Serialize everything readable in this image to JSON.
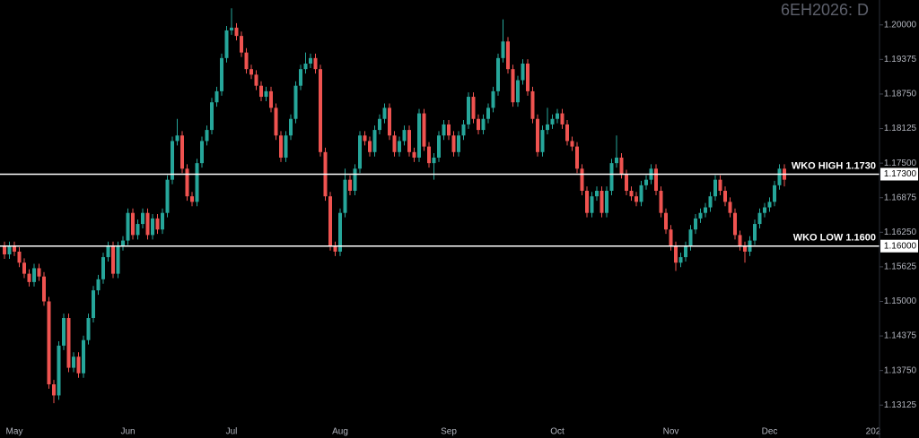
{
  "chart_data": {
    "type": "candlestick",
    "title": "6EH2026: D",
    "categories": [
      null,
      null,
      "May",
      null,
      null,
      null,
      null,
      null,
      null,
      null,
      null,
      null,
      null,
      null,
      null,
      null,
      null,
      null,
      null,
      null,
      null,
      null,
      null,
      null,
      null,
      "Jun",
      null,
      null,
      null,
      null,
      null,
      null,
      null,
      null,
      null,
      null,
      null,
      null,
      null,
      null,
      null,
      null,
      null,
      null,
      null,
      null,
      "Jul",
      null,
      null,
      null,
      null,
      null,
      null,
      null,
      null,
      null,
      null,
      null,
      null,
      null,
      null,
      null,
      null,
      null,
      null,
      null,
      null,
      null,
      "Aug",
      null,
      null,
      null,
      null,
      null,
      null,
      null,
      null,
      null,
      null,
      null,
      null,
      null,
      null,
      null,
      null,
      null,
      null,
      null,
      null,
      null,
      "Sep",
      null,
      null,
      null,
      null,
      null,
      null,
      null,
      null,
      null,
      null,
      null,
      null,
      null,
      null,
      null,
      null,
      null,
      null,
      null,
      null,
      null,
      "Oct",
      null,
      null,
      null,
      null,
      null,
      null,
      null,
      null,
      null,
      null,
      null,
      null,
      null,
      null,
      null,
      null,
      null,
      null,
      null,
      null,
      null,
      null,
      "Nov",
      null,
      null,
      null,
      null,
      null,
      null,
      null,
      null,
      null,
      null,
      null,
      null,
      null,
      null,
      null,
      null,
      null,
      null,
      null,
      "Dec",
      null,
      null,
      null,
      null,
      null,
      null,
      null,
      null,
      null,
      null,
      null,
      null,
      null,
      null,
      null,
      null,
      null,
      null,
      null,
      null,
      "202"
    ],
    "open": [
      1.16,
      1.1585,
      1.16,
      1.159,
      1.157,
      1.155,
      1.1535,
      1.156,
      1.1545,
      1.15,
      1.135,
      1.133,
      1.142,
      1.147,
      1.138,
      1.14,
      1.137,
      1.143,
      1.147,
      1.152,
      1.154,
      1.158,
      1.16,
      1.155,
      1.16,
      1.161,
      1.166,
      1.162,
      1.164,
      1.166,
      1.162,
      1.165,
      1.163,
      1.166,
      1.172,
      1.179,
      1.18,
      1.174,
      1.169,
      1.168,
      1.175,
      1.179,
      1.181,
      1.186,
      1.188,
      1.194,
      1.199,
      1.1995,
      1.198,
      1.195,
      1.192,
      1.191,
      1.189,
      1.187,
      1.188,
      1.185,
      1.18,
      1.176,
      1.18,
      1.183,
      1.189,
      1.192,
      1.193,
      1.194,
      1.192,
      1.177,
      1.169,
      1.16,
      1.159,
      1.166,
      1.172,
      1.17,
      1.174,
      1.18,
      1.179,
      1.177,
      1.181,
      1.183,
      1.185,
      1.18,
      1.177,
      1.179,
      1.181,
      1.177,
      1.176,
      1.184,
      1.178,
      1.175,
      1.176,
      1.18,
      1.182,
      1.18,
      1.177,
      1.18,
      1.182,
      1.187,
      1.183,
      1.181,
      1.183,
      1.185,
      1.188,
      1.194,
      1.197,
      1.192,
      1.186,
      1.19,
      1.193,
      1.188,
      1.183,
      1.177,
      1.181,
      1.182,
      1.183,
      1.184,
      1.182,
      1.179,
      1.178,
      1.174,
      1.17,
      1.166,
      1.169,
      1.17,
      1.166,
      1.17,
      1.175,
      1.176,
      1.173,
      1.17,
      1.169,
      1.168,
      1.171,
      1.172,
      1.174,
      1.17,
      1.166,
      1.163,
      1.16,
      1.157,
      1.158,
      1.16,
      1.163,
      1.165,
      1.166,
      1.167,
      1.169,
      1.172,
      1.17,
      1.168,
      1.166,
      1.162,
      1.16,
      1.159,
      1.161,
      1.164,
      1.166,
      1.167,
      1.168,
      1.171,
      1.174,
      null,
      null,
      null,
      null,
      null,
      null,
      null,
      null,
      null,
      null,
      null,
      null,
      null,
      null,
      null,
      null,
      null,
      null
    ],
    "high": [
      1.1608,
      1.1608,
      1.1608,
      1.1598,
      1.1578,
      1.1558,
      1.1568,
      1.1568,
      1.1553,
      1.1508,
      1.1358,
      1.1428,
      1.1478,
      1.1478,
      1.1408,
      1.1408,
      1.1438,
      1.1478,
      1.1528,
      1.1548,
      1.1588,
      1.1608,
      1.1608,
      1.1608,
      1.1618,
      1.1668,
      1.1668,
      1.1648,
      1.1668,
      1.1668,
      1.1658,
      1.1658,
      1.1668,
      1.1728,
      1.1798,
      1.183,
      1.1808,
      1.1748,
      1.1698,
      1.1758,
      1.1798,
      1.1818,
      1.1868,
      1.1888,
      1.1948,
      1.1998,
      1.203,
      1.2003,
      1.1988,
      1.1958,
      1.1928,
      1.1918,
      1.1898,
      1.1888,
      1.1888,
      1.1858,
      1.1808,
      1.1808,
      1.1838,
      1.1898,
      1.1928,
      1.195,
      1.1948,
      1.1948,
      1.1928,
      1.1778,
      1.1698,
      1.1608,
      1.1668,
      1.174,
      1.1728,
      1.1748,
      1.1808,
      1.1808,
      1.1798,
      1.1818,
      1.1838,
      1.1858,
      1.1858,
      1.1808,
      1.1798,
      1.1818,
      1.1818,
      1.1778,
      1.1848,
      1.1848,
      1.1788,
      1.1768,
      1.1808,
      1.1828,
      1.1828,
      1.1808,
      1.1808,
      1.1828,
      1.1878,
      1.1878,
      1.1838,
      1.1838,
      1.1858,
      1.1888,
      1.1948,
      1.201,
      1.1978,
      1.1928,
      1.1908,
      1.1938,
      1.1938,
      1.1888,
      1.1838,
      1.1818,
      1.185,
      1.1838,
      1.1848,
      1.1848,
      1.1828,
      1.1798,
      1.1788,
      1.1748,
      1.1708,
      1.1698,
      1.1708,
      1.1708,
      1.1708,
      1.1758,
      1.18,
      1.1768,
      1.1738,
      1.1708,
      1.1698,
      1.1718,
      1.1728,
      1.1748,
      1.1748,
      1.1708,
      1.1668,
      1.1638,
      1.1608,
      1.1588,
      1.1608,
      1.1638,
      1.1658,
      1.1668,
      1.1678,
      1.1698,
      1.1728,
      1.1728,
      1.1708,
      1.1688,
      1.1668,
      1.1628,
      1.1608,
      1.1618,
      1.1648,
      1.1668,
      1.1678,
      1.1688,
      1.1718,
      1.1748,
      1.1748,
      null,
      null,
      null,
      null,
      null,
      null,
      null,
      null,
      null,
      null,
      null,
      null,
      null,
      null,
      null,
      null,
      null,
      null
    ],
    "low": [
      1.1577,
      1.1577,
      1.1582,
      1.1562,
      1.1542,
      1.1527,
      1.1527,
      1.1537,
      1.1492,
      1.1342,
      1.1316,
      1.1322,
      1.1412,
      1.1372,
      1.1372,
      1.1362,
      1.1362,
      1.1422,
      1.1462,
      1.1512,
      1.1532,
      1.1572,
      1.1542,
      1.1542,
      1.1592,
      1.1602,
      1.1612,
      1.1612,
      1.1632,
      1.1612,
      1.1612,
      1.1622,
      1.1622,
      1.1652,
      1.1712,
      1.1782,
      1.1732,
      1.1682,
      1.1672,
      1.1672,
      1.1742,
      1.1782,
      1.1802,
      1.1852,
      1.1872,
      1.1932,
      1.1982,
      1.1972,
      1.1942,
      1.1912,
      1.1902,
      1.1882,
      1.1862,
      1.1862,
      1.1842,
      1.1792,
      1.1752,
      1.1752,
      1.1792,
      1.1822,
      1.1882,
      1.1912,
      1.1922,
      1.1912,
      1.1762,
      1.1682,
      1.1592,
      1.1582,
      1.1582,
      1.1652,
      1.1692,
      1.1692,
      1.1732,
      1.1782,
      1.1762,
      1.1762,
      1.1802,
      1.1822,
      1.1792,
      1.1762,
      1.1762,
      1.1782,
      1.1762,
      1.1752,
      1.1752,
      1.1772,
      1.1742,
      1.172,
      1.1752,
      1.1792,
      1.1792,
      1.1762,
      1.1762,
      1.1792,
      1.1812,
      1.1822,
      1.1802,
      1.1802,
      1.1822,
      1.1842,
      1.1872,
      1.1932,
      1.1912,
      1.1852,
      1.1852,
      1.1892,
      1.1872,
      1.1822,
      1.1762,
      1.1762,
      1.1802,
      1.1812,
      1.1822,
      1.1812,
      1.1782,
      1.1772,
      1.1732,
      1.1692,
      1.1652,
      1.1652,
      1.1682,
      1.1652,
      1.1652,
      1.1692,
      1.1742,
      1.1722,
      1.1692,
      1.1682,
      1.1672,
      1.1672,
      1.1702,
      1.1712,
      1.1692,
      1.1652,
      1.1622,
      1.1592,
      1.1555,
      1.1562,
      1.1572,
      1.1592,
      1.1622,
      1.1642,
      1.1652,
      1.1662,
      1.1682,
      1.1692,
      1.1672,
      1.1652,
      1.1612,
      1.1592,
      1.157,
      1.1582,
      1.1602,
      1.1632,
      1.1652,
      1.1662,
      1.1672,
      1.1702,
      1.1708,
      null,
      null,
      null,
      null,
      null,
      null,
      null,
      null,
      null,
      null,
      null,
      null,
      null,
      null,
      null,
      null,
      null,
      null
    ],
    "close": [
      1.1585,
      1.16,
      1.159,
      1.157,
      1.155,
      1.1535,
      1.156,
      1.1545,
      1.15,
      1.135,
      1.133,
      1.142,
      1.147,
      1.138,
      1.14,
      1.137,
      1.143,
      1.147,
      1.152,
      1.154,
      1.158,
      1.16,
      1.155,
      1.16,
      1.161,
      1.166,
      1.162,
      1.164,
      1.166,
      1.162,
      1.165,
      1.163,
      1.166,
      1.172,
      1.179,
      1.18,
      1.174,
      1.169,
      1.168,
      1.175,
      1.179,
      1.181,
      1.186,
      1.188,
      1.194,
      1.199,
      1.1995,
      1.198,
      1.195,
      1.192,
      1.191,
      1.189,
      1.187,
      1.188,
      1.185,
      1.18,
      1.176,
      1.18,
      1.183,
      1.189,
      1.192,
      1.193,
      1.194,
      1.192,
      1.177,
      1.169,
      1.16,
      1.159,
      1.166,
      1.172,
      1.17,
      1.174,
      1.18,
      1.179,
      1.177,
      1.181,
      1.183,
      1.185,
      1.18,
      1.177,
      1.179,
      1.181,
      1.177,
      1.176,
      1.184,
      1.178,
      1.175,
      1.176,
      1.18,
      1.182,
      1.18,
      1.177,
      1.18,
      1.182,
      1.187,
      1.183,
      1.181,
      1.183,
      1.185,
      1.188,
      1.194,
      1.197,
      1.192,
      1.186,
      1.19,
      1.193,
      1.188,
      1.183,
      1.177,
      1.181,
      1.182,
      1.183,
      1.184,
      1.182,
      1.179,
      1.178,
      1.174,
      1.17,
      1.166,
      1.169,
      1.17,
      1.166,
      1.17,
      1.175,
      1.176,
      1.173,
      1.17,
      1.169,
      1.168,
      1.171,
      1.172,
      1.174,
      1.17,
      1.166,
      1.163,
      1.16,
      1.157,
      1.158,
      1.16,
      1.163,
      1.165,
      1.166,
      1.167,
      1.169,
      1.172,
      1.17,
      1.168,
      1.166,
      1.162,
      1.16,
      1.159,
      1.161,
      1.164,
      1.166,
      1.167,
      1.168,
      1.171,
      1.174,
      1.172,
      null,
      null,
      null,
      null,
      null,
      null,
      null,
      null,
      null,
      null,
      null,
      null,
      null,
      null,
      null,
      null,
      null,
      null
    ],
    "up_color": "#26a69a",
    "down_color": "#ef5350",
    "ylim": [
      1.1287,
      1.2045
    ],
    "yticks": [
      {
        "value": 1.2,
        "label": "1.20000"
      },
      {
        "value": 1.19375,
        "label": "1.19375"
      },
      {
        "value": 1.1875,
        "label": "1.18750"
      },
      {
        "value": 1.18125,
        "label": "1.18125"
      },
      {
        "value": 1.175,
        "label": "1.17500"
      },
      {
        "value": 1.16875,
        "label": "1.16875"
      },
      {
        "value": 1.1625,
        "label": "1.16250"
      },
      {
        "value": 1.15625,
        "label": "1.15625"
      },
      {
        "value": 1.15,
        "label": "1.15000"
      },
      {
        "value": 1.14375,
        "label": "1.14375"
      },
      {
        "value": 1.1375,
        "label": "1.13750"
      },
      {
        "value": 1.13125,
        "label": "1.13125"
      }
    ],
    "reference_lines": [
      {
        "label": "WKO HIGH 1.1730",
        "value": 1.173,
        "value_label": "1.17300"
      },
      {
        "label": "WKO LOW 1.1600",
        "value": 1.16,
        "value_label": "1.16000"
      }
    ],
    "grid": false
  }
}
